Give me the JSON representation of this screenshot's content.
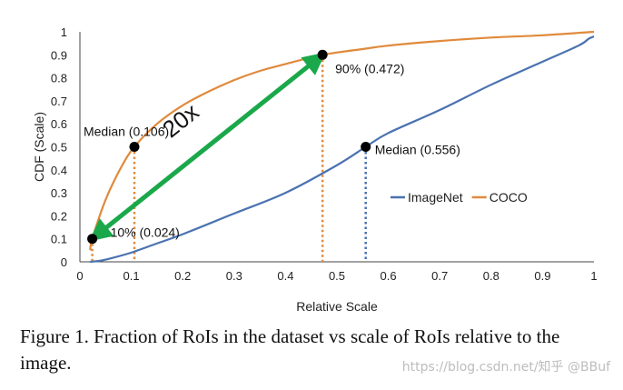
{
  "chart_data": {
    "type": "line",
    "xlabel": "Relative Scale",
    "ylabel": "CDF (Scale)",
    "xlim": [
      0,
      1
    ],
    "ylim": [
      0,
      1
    ],
    "xticks": [
      "0",
      "0.1",
      "0.2",
      "0.3",
      "0.4",
      "0.5",
      "0.6",
      "0.7",
      "0.8",
      "0.9",
      "1"
    ],
    "yticks": [
      "0",
      "0.1",
      "0.2",
      "0.3",
      "0.4",
      "0.5",
      "0.6",
      "0.7",
      "0.8",
      "0.9",
      "1"
    ],
    "grid": false,
    "legend_position": "right-middle",
    "series": [
      {
        "name": "ImageNet",
        "color": "#4a72b0",
        "x": [
          0.02,
          0.04,
          0.06,
          0.1,
          0.15,
          0.2,
          0.3,
          0.4,
          0.5,
          0.556,
          0.6,
          0.7,
          0.8,
          0.9,
          0.97,
          0.99,
          1.0
        ],
        "y": [
          0.0,
          0.005,
          0.015,
          0.04,
          0.08,
          0.12,
          0.21,
          0.3,
          0.42,
          0.5,
          0.56,
          0.66,
          0.77,
          0.87,
          0.94,
          0.97,
          0.98
        ]
      },
      {
        "name": "COCO",
        "color": "#e08a3c",
        "x": [
          0.02,
          0.024,
          0.05,
          0.08,
          0.106,
          0.15,
          0.2,
          0.25,
          0.3,
          0.35,
          0.4,
          0.472,
          0.55,
          0.6,
          0.7,
          0.8,
          0.9,
          1.0
        ],
        "y": [
          0.05,
          0.1,
          0.27,
          0.41,
          0.5,
          0.6,
          0.68,
          0.74,
          0.79,
          0.83,
          0.86,
          0.9,
          0.925,
          0.94,
          0.96,
          0.975,
          0.985,
          1.0
        ]
      }
    ],
    "points": [
      {
        "label": "Median (0.106)",
        "x": 0.106,
        "y": 0.5,
        "line_color": "#e08a3c"
      },
      {
        "label": "10% (0.024)",
        "x": 0.024,
        "y": 0.1,
        "line_color": "#e08a3c"
      },
      {
        "label": "90% (0.472)",
        "x": 0.472,
        "y": 0.9,
        "line_color": "#e08a3c"
      },
      {
        "label": "Median (0.556)",
        "x": 0.556,
        "y": 0.5,
        "line_color": "#4a72b0"
      }
    ],
    "arrow": {
      "label": "20x",
      "color": "#1aa84a",
      "from": [
        0.024,
        0.1
      ],
      "to": [
        0.472,
        0.9
      ]
    }
  },
  "caption": "Figure 1. Fraction of RoIs in the dataset vs scale of RoIs relative to the image.",
  "watermark": "https://blog.csdn.net/知乎 @BBuf"
}
